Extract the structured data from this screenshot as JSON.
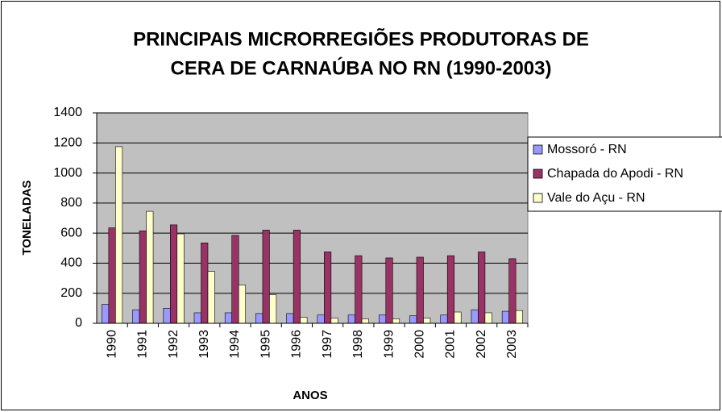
{
  "chart_data": {
    "type": "bar",
    "title": [
      "PRINCIPAIS MICRORREGIÕES PRODUTORAS DE",
      "CERA DE CARNAÚBA NO RN (1990-2003)"
    ],
    "xlabel": "ANOS",
    "ylabel": "TONELADAS",
    "categories": [
      "1990",
      "1991",
      "1992",
      "1993",
      "1994",
      "1995",
      "1996",
      "1997",
      "1998",
      "1999",
      "2000",
      "2001",
      "2002",
      "2003"
    ],
    "series": [
      {
        "name": "Mossoró - RN",
        "color": "#9999ff",
        "values": [
          125,
          90,
          100,
          70,
          70,
          65,
          65,
          55,
          55,
          55,
          50,
          55,
          90,
          80
        ]
      },
      {
        "name": "Chapada do Apodi - RN",
        "color": "#993366",
        "values": [
          635,
          615,
          655,
          535,
          585,
          620,
          620,
          475,
          450,
          435,
          440,
          450,
          475,
          430
        ]
      },
      {
        "name": "Vale do Açu - RN",
        "color": "#ffffcc",
        "values": [
          1175,
          745,
          595,
          345,
          255,
          190,
          40,
          35,
          30,
          30,
          35,
          75,
          70,
          85
        ]
      }
    ],
    "ylim": [
      0,
      1400
    ],
    "yticks": [
      0,
      200,
      400,
      600,
      800,
      1000,
      1200,
      1400
    ],
    "grid": true,
    "legend": "right"
  }
}
